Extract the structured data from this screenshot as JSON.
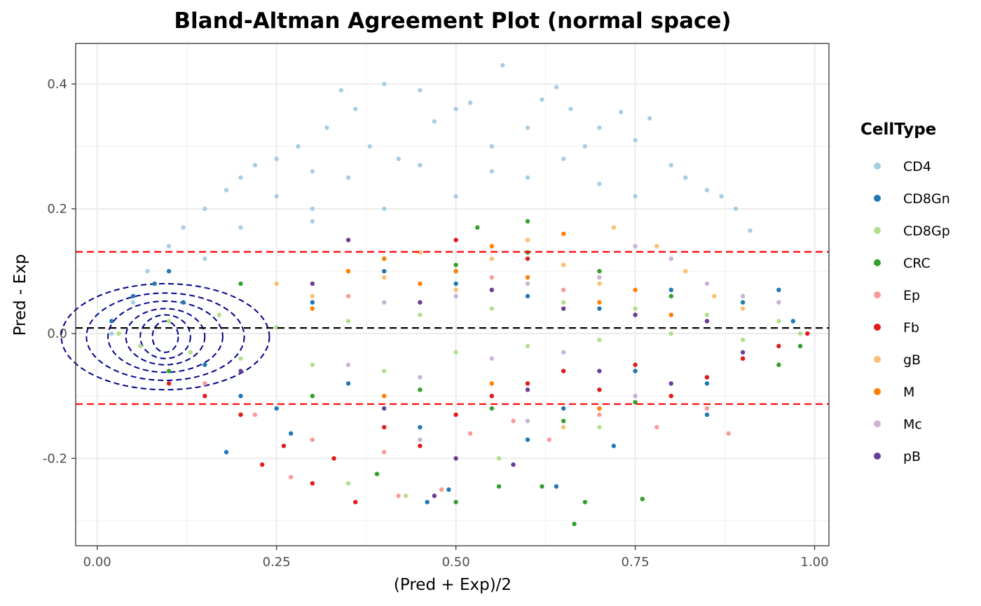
{
  "chart_data": {
    "type": "scatter",
    "title": "Bland-Altman Agreement Plot (normal space)",
    "xlabel": "(Pred + Exp)/2",
    "ylabel": "Pred - Exp",
    "xlim": [
      -0.03,
      1.02
    ],
    "ylim": [
      -0.34,
      0.465
    ],
    "x_ticks": [
      0.0,
      0.25,
      0.5,
      0.75,
      1.0
    ],
    "x_tick_labels": [
      "0.00",
      "0.25",
      "0.50",
      "0.75",
      "1.00"
    ],
    "y_ticks": [
      -0.2,
      0.0,
      0.2,
      0.4
    ],
    "y_tick_labels": [
      "-0.2",
      "0.0",
      "0.2",
      "0.4"
    ],
    "grid": true,
    "legend_position": "right",
    "legend_title": "CellType",
    "reference_lines": [
      {
        "name": "mean-difference",
        "y": 0.009,
        "color": "#000000",
        "style": "dashed"
      },
      {
        "name": "upper-limit-of-agreement",
        "y": 0.131,
        "color": "#ff0000",
        "style": "dashed"
      },
      {
        "name": "lower-limit-of-agreement",
        "y": -0.113,
        "color": "#ff0000",
        "style": "dashed"
      }
    ],
    "density_contour": {
      "color": "#00008b",
      "style": "dashed",
      "center": [
        0.095,
        -0.005
      ],
      "radii": [
        [
          0.018,
          0.025
        ],
        [
          0.035,
          0.035
        ],
        [
          0.055,
          0.045
        ],
        [
          0.08,
          0.057
        ],
        [
          0.11,
          0.07
        ],
        [
          0.145,
          0.085
        ]
      ]
    },
    "series": [
      {
        "name": "CD4",
        "color": "#a6cee3",
        "points": [
          [
            0.02,
            0.0
          ],
          [
            0.05,
            0.05
          ],
          [
            0.07,
            0.1
          ],
          [
            0.1,
            0.14
          ],
          [
            0.12,
            0.17
          ],
          [
            0.15,
            0.2
          ],
          [
            0.18,
            0.23
          ],
          [
            0.2,
            0.25
          ],
          [
            0.22,
            0.27
          ],
          [
            0.25,
            0.28
          ],
          [
            0.28,
            0.3
          ],
          [
            0.3,
            0.26
          ],
          [
            0.32,
            0.33
          ],
          [
            0.34,
            0.39
          ],
          [
            0.36,
            0.36
          ],
          [
            0.38,
            0.3
          ],
          [
            0.4,
            0.4
          ],
          [
            0.42,
            0.28
          ],
          [
            0.45,
            0.39
          ],
          [
            0.47,
            0.34
          ],
          [
            0.5,
            0.36
          ],
          [
            0.52,
            0.37
          ],
          [
            0.55,
            0.3
          ],
          [
            0.565,
            0.43
          ],
          [
            0.6,
            0.33
          ],
          [
            0.62,
            0.375
          ],
          [
            0.64,
            0.395
          ],
          [
            0.66,
            0.36
          ],
          [
            0.68,
            0.3
          ],
          [
            0.7,
            0.33
          ],
          [
            0.73,
            0.355
          ],
          [
            0.75,
            0.31
          ],
          [
            0.77,
            0.345
          ],
          [
            0.8,
            0.27
          ],
          [
            0.82,
            0.25
          ],
          [
            0.85,
            0.23
          ],
          [
            0.87,
            0.22
          ],
          [
            0.89,
            0.2
          ],
          [
            0.91,
            0.165
          ],
          [
            0.3,
            0.18
          ],
          [
            0.4,
            0.2
          ],
          [
            0.5,
            0.22
          ],
          [
            0.6,
            0.25
          ],
          [
            0.7,
            0.24
          ],
          [
            0.25,
            0.22
          ],
          [
            0.35,
            0.25
          ],
          [
            0.45,
            0.27
          ],
          [
            0.55,
            0.26
          ],
          [
            0.65,
            0.28
          ],
          [
            0.75,
            0.22
          ],
          [
            0.15,
            0.12
          ],
          [
            0.2,
            0.17
          ],
          [
            0.3,
            0.2
          ]
        ]
      },
      {
        "name": "CD8Gn",
        "color": "#1f78b4",
        "points": [
          [
            0.02,
            0.02
          ],
          [
            0.05,
            0.06
          ],
          [
            0.08,
            0.08
          ],
          [
            0.1,
            0.1
          ],
          [
            0.12,
            0.05
          ],
          [
            0.15,
            -0.05
          ],
          [
            0.2,
            -0.1
          ],
          [
            0.25,
            -0.12
          ],
          [
            0.3,
            0.05
          ],
          [
            0.35,
            -0.08
          ],
          [
            0.4,
            0.1
          ],
          [
            0.45,
            -0.15
          ],
          [
            0.5,
            0.08
          ],
          [
            0.55,
            -0.1
          ],
          [
            0.6,
            0.06
          ],
          [
            0.65,
            -0.12
          ],
          [
            0.7,
            0.04
          ],
          [
            0.75,
            -0.06
          ],
          [
            0.8,
            0.07
          ],
          [
            0.85,
            -0.08
          ],
          [
            0.9,
            0.05
          ],
          [
            0.95,
            0.07
          ],
          [
            0.97,
            0.02
          ],
          [
            0.46,
            -0.27
          ],
          [
            0.49,
            -0.25
          ],
          [
            0.64,
            -0.245
          ],
          [
            0.18,
            -0.19
          ],
          [
            0.27,
            -0.16
          ],
          [
            0.6,
            -0.17
          ],
          [
            0.72,
            -0.18
          ],
          [
            0.85,
            -0.13
          ]
        ]
      },
      {
        "name": "CD8Gp",
        "color": "#b2df8a",
        "points": [
          [
            0.03,
            0.0
          ],
          [
            0.06,
            -0.02
          ],
          [
            0.1,
            0.02
          ],
          [
            0.13,
            -0.03
          ],
          [
            0.17,
            0.03
          ],
          [
            0.2,
            -0.04
          ],
          [
            0.25,
            0.01
          ],
          [
            0.3,
            -0.05
          ],
          [
            0.35,
            0.02
          ],
          [
            0.4,
            -0.06
          ],
          [
            0.45,
            0.03
          ],
          [
            0.5,
            -0.03
          ],
          [
            0.55,
            0.04
          ],
          [
            0.6,
            -0.02
          ],
          [
            0.65,
            0.05
          ],
          [
            0.7,
            -0.01
          ],
          [
            0.75,
            0.04
          ],
          [
            0.8,
            0.0
          ],
          [
            0.85,
            0.03
          ],
          [
            0.9,
            -0.01
          ],
          [
            0.95,
            0.02
          ],
          [
            0.98,
            0.0
          ],
          [
            0.35,
            -0.24
          ],
          [
            0.43,
            -0.26
          ],
          [
            0.56,
            -0.2
          ],
          [
            0.7,
            -0.15
          ],
          [
            0.6,
            0.15
          ]
        ]
      },
      {
        "name": "CRC",
        "color": "#33a02c",
        "points": [
          [
            0.1,
            -0.06
          ],
          [
            0.2,
            0.08
          ],
          [
            0.3,
            -0.1
          ],
          [
            0.4,
            0.12
          ],
          [
            0.45,
            -0.09
          ],
          [
            0.5,
            0.11
          ],
          [
            0.55,
            -0.12
          ],
          [
            0.6,
            0.13
          ],
          [
            0.65,
            -0.14
          ],
          [
            0.7,
            0.1
          ],
          [
            0.75,
            -0.11
          ],
          [
            0.8,
            0.06
          ],
          [
            0.85,
            -0.07
          ],
          [
            0.9,
            -0.04
          ],
          [
            0.95,
            -0.05
          ],
          [
            0.98,
            -0.02
          ],
          [
            0.39,
            -0.225
          ],
          [
            0.5,
            -0.27
          ],
          [
            0.56,
            -0.245
          ],
          [
            0.62,
            -0.245
          ],
          [
            0.665,
            -0.305
          ],
          [
            0.68,
            -0.27
          ],
          [
            0.76,
            -0.265
          ],
          [
            0.6,
            0.18
          ],
          [
            0.53,
            0.17
          ]
        ]
      },
      {
        "name": "Ep",
        "color": "#fb9a99",
        "points": [
          [
            0.15,
            -0.08
          ],
          [
            0.22,
            -0.13
          ],
          [
            0.27,
            -0.23
          ],
          [
            0.3,
            -0.17
          ],
          [
            0.35,
            0.06
          ],
          [
            0.4,
            -0.19
          ],
          [
            0.42,
            -0.26
          ],
          [
            0.48,
            -0.25
          ],
          [
            0.52,
            -0.16
          ],
          [
            0.58,
            -0.14
          ],
          [
            0.63,
            -0.17
          ],
          [
            0.7,
            -0.13
          ],
          [
            0.78,
            -0.15
          ],
          [
            0.85,
            -0.12
          ],
          [
            0.88,
            -0.16
          ],
          [
            0.55,
            0.09
          ],
          [
            0.65,
            0.07
          ]
        ]
      },
      {
        "name": "Fb",
        "color": "#e31a1c",
        "points": [
          [
            0.1,
            -0.08
          ],
          [
            0.15,
            -0.1
          ],
          [
            0.2,
            -0.13
          ],
          [
            0.23,
            -0.21
          ],
          [
            0.26,
            -0.18
          ],
          [
            0.3,
            -0.24
          ],
          [
            0.33,
            -0.2
          ],
          [
            0.36,
            -0.27
          ],
          [
            0.4,
            -0.15
          ],
          [
            0.45,
            -0.18
          ],
          [
            0.5,
            -0.13
          ],
          [
            0.55,
            -0.1
          ],
          [
            0.6,
            -0.08
          ],
          [
            0.65,
            -0.06
          ],
          [
            0.7,
            -0.09
          ],
          [
            0.75,
            -0.05
          ],
          [
            0.8,
            -0.1
          ],
          [
            0.85,
            -0.07
          ],
          [
            0.9,
            -0.04
          ],
          [
            0.95,
            -0.02
          ],
          [
            0.99,
            0.0
          ],
          [
            0.5,
            0.15
          ],
          [
            0.6,
            0.12
          ]
        ]
      },
      {
        "name": "gB",
        "color": "#fdbf6f",
        "points": [
          [
            0.25,
            0.08
          ],
          [
            0.3,
            0.06
          ],
          [
            0.35,
            0.1
          ],
          [
            0.4,
            0.09
          ],
          [
            0.45,
            0.13
          ],
          [
            0.5,
            0.07
          ],
          [
            0.55,
            0.12
          ],
          [
            0.6,
            0.15
          ],
          [
            0.65,
            0.11
          ],
          [
            0.7,
            0.08
          ],
          [
            0.72,
            0.17
          ],
          [
            0.78,
            0.14
          ],
          [
            0.82,
            0.1
          ],
          [
            0.86,
            0.06
          ],
          [
            0.9,
            0.04
          ],
          [
            0.5,
            -0.2
          ],
          [
            0.65,
            -0.15
          ]
        ]
      },
      {
        "name": "M",
        "color": "#ff7f00",
        "points": [
          [
            0.3,
            0.04
          ],
          [
            0.35,
            0.1
          ],
          [
            0.4,
            0.12
          ],
          [
            0.45,
            0.08
          ],
          [
            0.5,
            0.1
          ],
          [
            0.55,
            0.14
          ],
          [
            0.6,
            0.09
          ],
          [
            0.65,
            0.16
          ],
          [
            0.7,
            0.05
          ],
          [
            0.75,
            0.07
          ],
          [
            0.8,
            0.03
          ],
          [
            0.85,
            0.02
          ],
          [
            0.4,
            -0.1
          ],
          [
            0.55,
            -0.08
          ],
          [
            0.7,
            -0.12
          ]
        ]
      },
      {
        "name": "Mc",
        "color": "#cab2d6",
        "points": [
          [
            0.35,
            -0.05
          ],
          [
            0.4,
            0.05
          ],
          [
            0.45,
            -0.07
          ],
          [
            0.5,
            0.06
          ],
          [
            0.55,
            -0.04
          ],
          [
            0.6,
            0.08
          ],
          [
            0.65,
            -0.03
          ],
          [
            0.7,
            0.09
          ],
          [
            0.75,
            0.14
          ],
          [
            0.8,
            0.12
          ],
          [
            0.85,
            0.08
          ],
          [
            0.9,
            0.06
          ],
          [
            0.95,
            0.05
          ],
          [
            0.45,
            -0.17
          ],
          [
            0.6,
            -0.14
          ],
          [
            0.75,
            -0.1
          ]
        ]
      },
      {
        "name": "pB",
        "color": "#6a3d9a",
        "points": [
          [
            0.2,
            -0.06
          ],
          [
            0.3,
            0.08
          ],
          [
            0.35,
            0.15
          ],
          [
            0.4,
            -0.12
          ],
          [
            0.45,
            0.05
          ],
          [
            0.5,
            -0.2
          ],
          [
            0.55,
            0.07
          ],
          [
            0.6,
            -0.09
          ],
          [
            0.65,
            0.04
          ],
          [
            0.7,
            -0.06
          ],
          [
            0.75,
            0.03
          ],
          [
            0.8,
            -0.08
          ],
          [
            0.85,
            0.02
          ],
          [
            0.9,
            -0.03
          ],
          [
            0.47,
            -0.26
          ],
          [
            0.58,
            -0.21
          ]
        ]
      }
    ]
  }
}
